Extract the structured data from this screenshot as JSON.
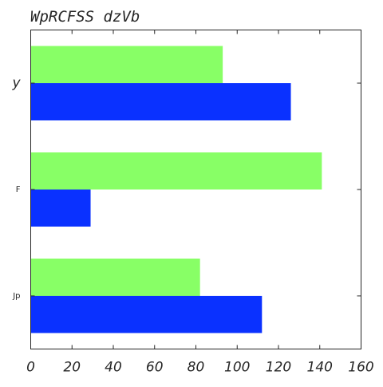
{
  "chart_data": {
    "type": "bar",
    "orientation": "horizontal",
    "title": "WpRCFSS dzVb",
    "xlabel": "",
    "ylabel": "",
    "categories": [
      "y",
      "F",
      "Jp"
    ],
    "series": [
      {
        "color": "#88ff66",
        "values": [
          93,
          141,
          82
        ]
      },
      {
        "color": "#0a31ff",
        "values": [
          126,
          29,
          112
        ]
      }
    ],
    "xlim": [
      0,
      160
    ],
    "xticks": [
      "0",
      "20",
      "40",
      "60",
      "80",
      "100",
      "120",
      "140",
      "160"
    ],
    "grid": false,
    "legend": "none"
  }
}
